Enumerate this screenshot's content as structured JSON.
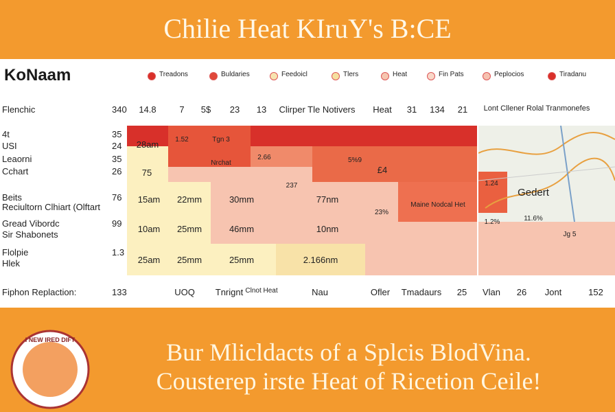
{
  "header": {
    "title": "Chilie Heat  KIruY's B:CE"
  },
  "brand": "KoNaam",
  "legend": [
    {
      "label": "Treadons",
      "color": "#d9302a"
    },
    {
      "label": "Buldaries",
      "color": "#e0483a"
    },
    {
      "label": "Feedoicl",
      "color": "#f7e3b0"
    },
    {
      "label": "Tlers",
      "color": "#f5e0a0"
    },
    {
      "label": "Heat",
      "color": "#f6c6b0"
    },
    {
      "label": "Fin Pats",
      "color": "#f9d7c8"
    },
    {
      "label": "Peplocios",
      "color": "#f6c1b0"
    },
    {
      "label": "Tiradanu",
      "color": "#d9302a"
    }
  ],
  "column_headers": [
    "14.8",
    "7",
    "5$",
    "23",
    "13",
    "Clirper Tle Notivers",
    "Heat",
    "31",
    "134",
    "21",
    "Lont Cllener Rolal Tranmonefes"
  ],
  "rows": [
    {
      "label": "Flenchic",
      "value": "340"
    },
    {
      "label": "4t",
      "value": "35"
    },
    {
      "label": "USI",
      "value": "24"
    },
    {
      "label": "Leaorni",
      "value": "35"
    },
    {
      "label": "Cchart",
      "value": "26"
    },
    {
      "label": "Beits",
      "value": "76"
    },
    {
      "label": "Reciultorn Clhiart (Olftart",
      "value": ""
    },
    {
      "label": "Gread Vibordc",
      "value": "99"
    },
    {
      "label": "Sir Shabonets",
      "value": ""
    },
    {
      "label": "Flolpie",
      "value": "1.3"
    },
    {
      "label": "Hlek",
      "value": ""
    },
    {
      "label": "Fiphon Replaction:",
      "value": "133"
    }
  ],
  "cells": [
    "28am",
    "75",
    "15am",
    "22mm",
    "30mm",
    "77nm",
    "10am",
    "25mm",
    "46mm",
    "10nm",
    "25am",
    "25mm",
    "25mm",
    "2.166nm",
    "1.52",
    "Tgn 3",
    "Nrchat",
    "2.66",
    "5%9",
    "£4",
    "237",
    "23%",
    "Maine Nodcal Het",
    "1.24",
    "Gedert",
    "11.6%",
    "1.2%",
    "Jg 5"
  ],
  "footer_row": [
    "UOQ",
    "Tnrignt",
    "Clnot Heat",
    "Nau",
    "Ofler",
    "Tmadaurs",
    "25",
    "Vlan",
    "26",
    "Jont",
    "152"
  ],
  "badge": "I NEW IRED DIFT",
  "tagline": [
    "Bur Mlicldacts of a Splcis BlodVina.",
    "Cousterep irste Heat of Ricetion Ceile!"
  ]
}
